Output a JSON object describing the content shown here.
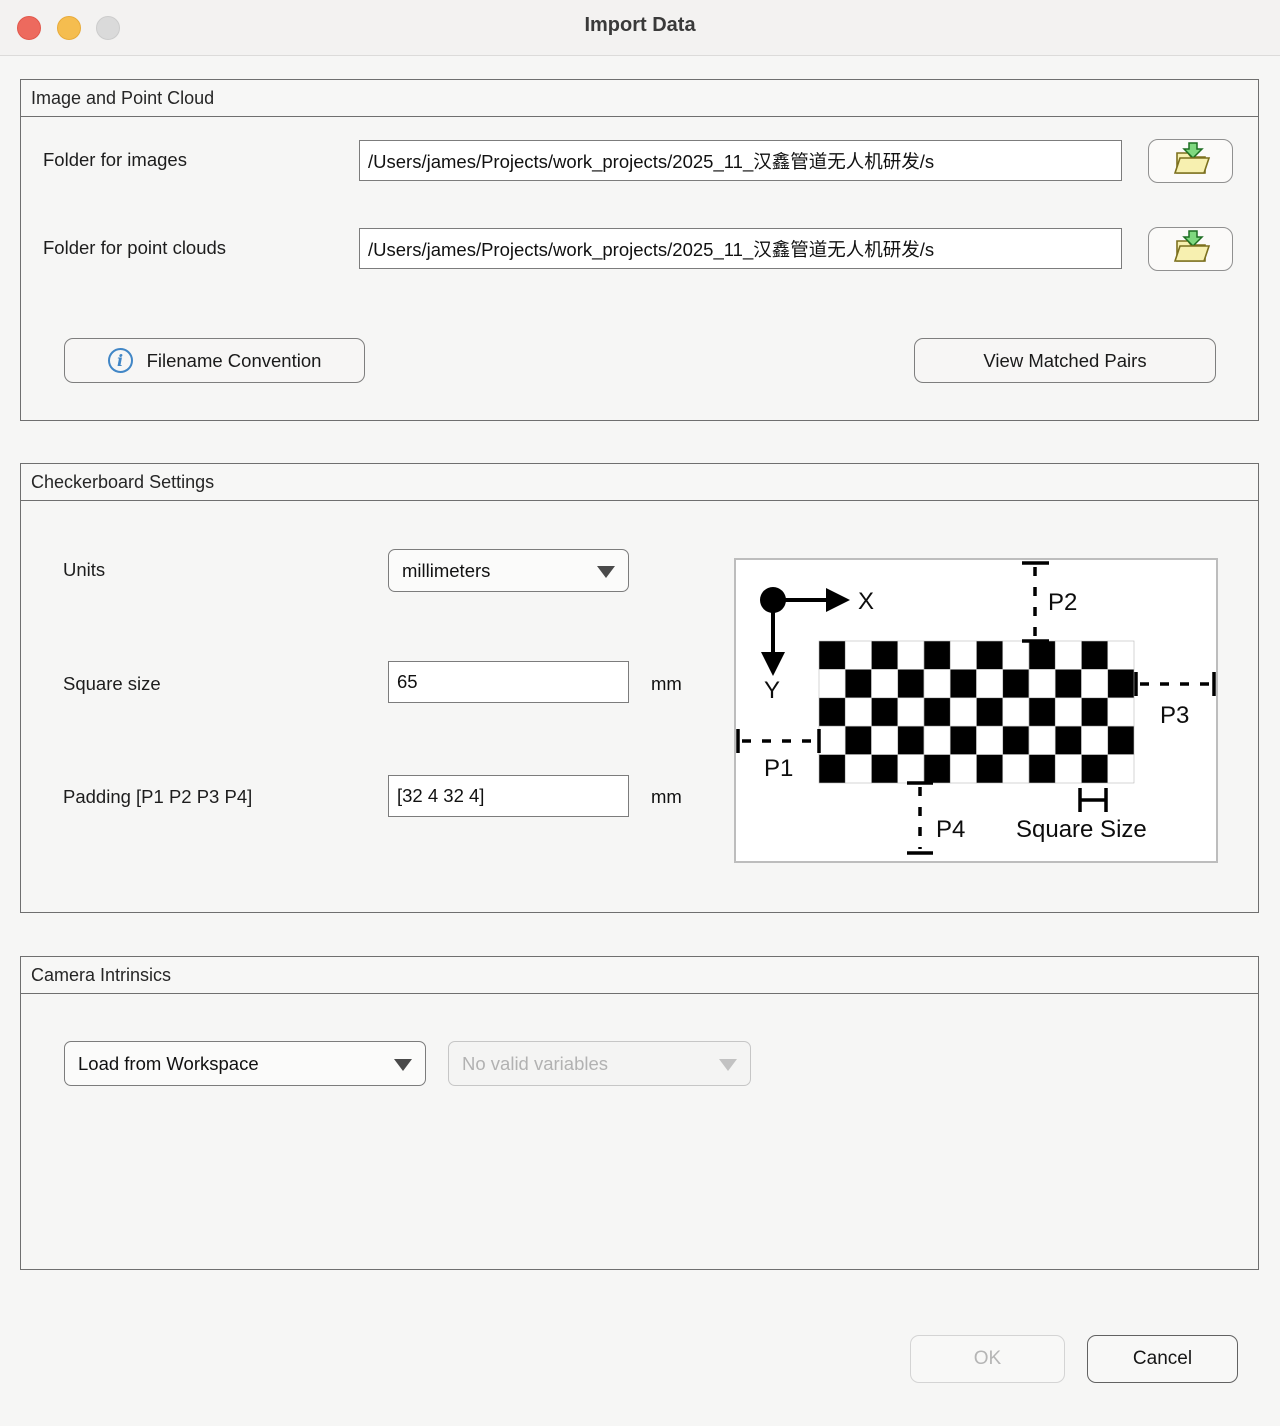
{
  "window": {
    "title": "Import Data"
  },
  "sections": {
    "image_point_cloud": {
      "title": "Image and Point Cloud",
      "folder_images_label": "Folder for images",
      "folder_images_value": "/Users/james/Projects/work_projects/2025_11_汉鑫管道无人机研发/s",
      "folder_pointclouds_label": "Folder for point clouds",
      "folder_pointclouds_value": "/Users/james/Projects/work_projects/2025_11_汉鑫管道无人机研发/s",
      "filename_convention_label": "Filename Convention",
      "view_matched_pairs_label": "View Matched Pairs"
    },
    "checkerboard": {
      "title": "Checkerboard Settings",
      "units_label": "Units",
      "units_value": "millimeters",
      "square_size_label": "Square size",
      "square_size_value": "65",
      "square_size_unit": "mm",
      "padding_label": "Padding [P1 P2 P3 P4]",
      "padding_value": "[32 4 32 4]",
      "padding_unit": "mm",
      "diagram": {
        "x_axis_label": "X",
        "y_axis_label": "Y",
        "p1_label": "P1",
        "p2_label": "P2",
        "p3_label": "P3",
        "p4_label": "P4",
        "square_size_caption": "Square Size",
        "board_cols": 12,
        "board_rows": 5
      }
    },
    "camera_intrinsics": {
      "title": "Camera Intrinsics",
      "source_value": "Load from Workspace",
      "variables_value": "No valid variables"
    }
  },
  "footer": {
    "ok_label": "OK",
    "cancel_label": "Cancel"
  },
  "colors": {
    "traffic_close": "#ed6a5e",
    "traffic_minimize": "#f5bd4f",
    "traffic_zoom_inactive": "#dadada",
    "info_icon_blue": "#4186c6",
    "folder_icon_yellow": "#f7f0b0",
    "folder_icon_arrow_green": "#7fd87f",
    "checker_black": "#000000",
    "checker_white": "#ffffff"
  }
}
